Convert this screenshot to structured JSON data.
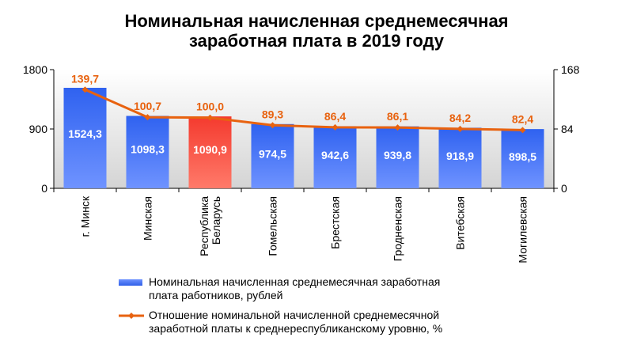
{
  "chart_data": {
    "type": "bar",
    "title": [
      "Номинальная начисленная среднемесячная",
      "заработная плата в 2019 году"
    ],
    "categories": [
      [
        "г. Минск"
      ],
      [
        "Минская"
      ],
      [
        "Республика",
        "Беларусь"
      ],
      [
        "Гомельская"
      ],
      [
        "Брестская"
      ],
      [
        "Гродненская"
      ],
      [
        "Витебская"
      ],
      [
        "Могилевская"
      ]
    ],
    "highlight_index": 2,
    "series": [
      {
        "kind": "bar",
        "axis": "left",
        "name": [
          "Номинальная начисленная среднемесячная заработная",
          "плата работников, рублей"
        ],
        "values": [
          1524.3,
          1098.3,
          1090.9,
          974.5,
          942.6,
          939.8,
          918.9,
          898.5
        ],
        "labels": [
          "1524,3",
          "1098,3",
          "1090,9",
          "974,5",
          "942,6",
          "939,8",
          "918,9",
          "898,5"
        ],
        "color": "#3b6cf0",
        "highlight_color": "#f0302a"
      },
      {
        "kind": "line",
        "axis": "right",
        "name": [
          "Отношение номинальной начисленной среднемесячной",
          "заработной платы к среднереспубликанскому уровню, %"
        ],
        "values": [
          139.7,
          100.7,
          100.0,
          89.3,
          86.4,
          86.1,
          84.2,
          82.4
        ],
        "labels": [
          "139,7",
          "100,7",
          "100,0",
          "89,3",
          "86,4",
          "86,1",
          "84,2",
          "82,4"
        ],
        "color": "#e8620f"
      }
    ],
    "y_left": {
      "min": 0,
      "max": 1800,
      "ticks": [
        0,
        900,
        1800
      ]
    },
    "y_right": {
      "min": 0,
      "max": 168,
      "ticks": [
        0,
        84,
        168
      ]
    },
    "legend_position": "bottom",
    "grid": false
  }
}
